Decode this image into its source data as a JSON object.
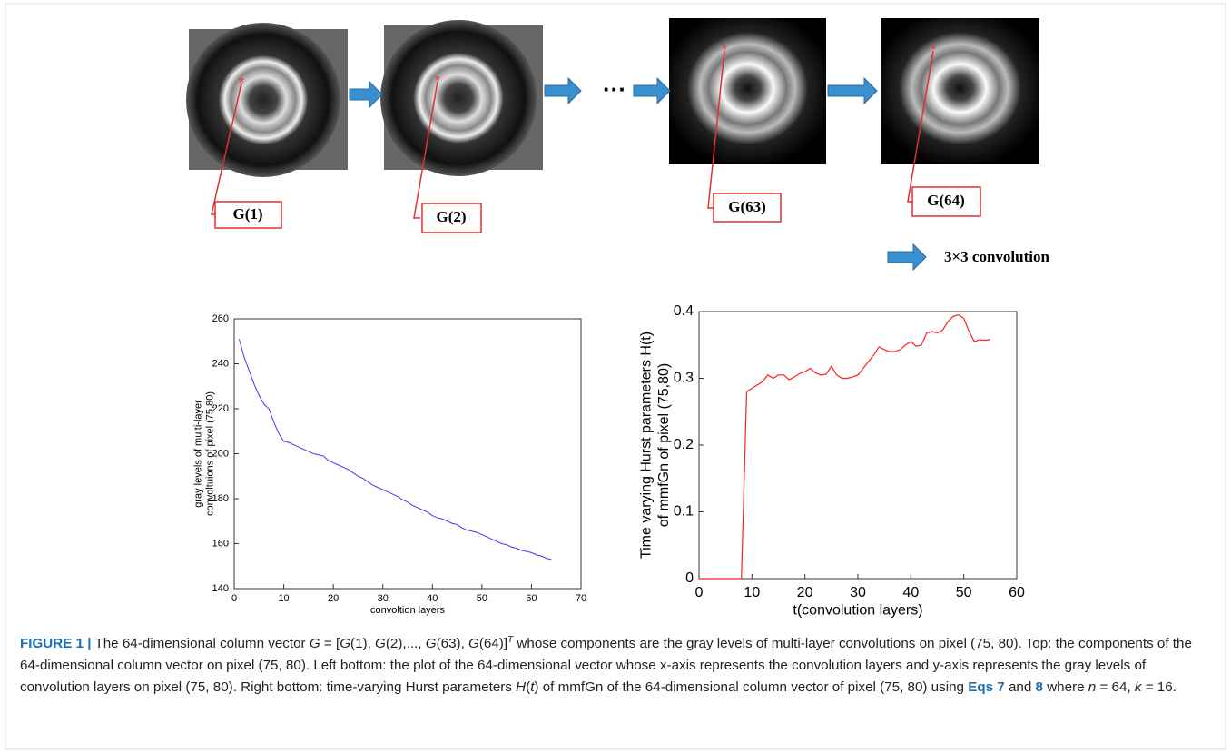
{
  "top": {
    "labels": [
      "G(1)",
      "G(2)",
      "G(63)",
      "G(64)"
    ],
    "ellipsis": "···",
    "legend": "3×3 convolution"
  },
  "chart_data": [
    {
      "type": "line",
      "xlabel": "convoltion layers",
      "ylabel": [
        "gray levels of multi-layer",
        "convoltuions of pixel (75,80)"
      ],
      "color": "#3b3bff",
      "x": [
        1,
        2,
        3,
        4,
        5,
        6,
        7,
        8,
        9,
        10,
        11,
        12,
        13,
        14,
        15,
        16,
        17,
        18,
        19,
        20,
        21,
        22,
        23,
        24,
        25,
        26,
        27,
        28,
        29,
        30,
        31,
        32,
        33,
        34,
        35,
        36,
        37,
        38,
        39,
        40,
        41,
        42,
        43,
        44,
        45,
        46,
        47,
        48,
        49,
        50,
        51,
        52,
        53,
        54,
        55,
        56,
        57,
        58,
        59,
        60,
        61,
        62,
        63,
        64
      ],
      "values": [
        251,
        243,
        237,
        231,
        226,
        222,
        220,
        214,
        209,
        205.5,
        205,
        204,
        203,
        202,
        201,
        200,
        199.5,
        199,
        197,
        196,
        195,
        194,
        193,
        191.5,
        190,
        189,
        187.5,
        186,
        185,
        184,
        183,
        182,
        181,
        179.5,
        178.5,
        177,
        176,
        175,
        174,
        172.5,
        171.5,
        171,
        170,
        169,
        168.5,
        167,
        166,
        165.5,
        165,
        164,
        163,
        162,
        161,
        160,
        159.5,
        158.5,
        158,
        157,
        156.5,
        156,
        155,
        154.5,
        153.5,
        153
      ],
      "xlim": [
        0,
        70
      ],
      "ylim": [
        140,
        260
      ],
      "xticks": [
        0,
        10,
        20,
        30,
        40,
        50,
        60,
        70
      ],
      "yticks": [
        140,
        160,
        180,
        200,
        220,
        240,
        260
      ]
    },
    {
      "type": "line",
      "xlabel": "t(convolution layers)",
      "ylabel": [
        "Time varying Hurst parameters H(t)",
        "of mmfGn of pixel (75,80)"
      ],
      "color": "#ff2020",
      "x": [
        0,
        1,
        2,
        3,
        4,
        5,
        6,
        7,
        8,
        9,
        10,
        11,
        12,
        13,
        14,
        15,
        16,
        17,
        18,
        19,
        20,
        21,
        22,
        23,
        24,
        25,
        26,
        27,
        28,
        29,
        30,
        31,
        32,
        33,
        34,
        35,
        36,
        37,
        38,
        39,
        40,
        41,
        42,
        43,
        44,
        45,
        46,
        47,
        48,
        49,
        50,
        51,
        52,
        53,
        54,
        55
      ],
      "values": [
        0,
        0,
        0,
        0,
        0,
        0,
        0,
        0,
        0,
        0.28,
        0.285,
        0.29,
        0.295,
        0.305,
        0.3,
        0.305,
        0.305,
        0.298,
        0.302,
        0.307,
        0.31,
        0.315,
        0.308,
        0.305,
        0.306,
        0.318,
        0.305,
        0.3,
        0.3,
        0.302,
        0.305,
        0.315,
        0.325,
        0.335,
        0.347,
        0.343,
        0.34,
        0.34,
        0.343,
        0.35,
        0.355,
        0.348,
        0.35,
        0.368,
        0.37,
        0.368,
        0.372,
        0.385,
        0.393,
        0.395,
        0.39,
        0.37,
        0.355,
        0.358,
        0.357,
        0.358
      ],
      "xlim": [
        0,
        60
      ],
      "ylim": [
        0,
        0.4
      ],
      "xticks": [
        0,
        10,
        20,
        30,
        40,
        50,
        60
      ],
      "yticks": [
        0,
        0.1,
        0.2,
        0.3,
        0.4
      ]
    }
  ],
  "caption": {
    "parts": [
      "FIGURE 1 |",
      " The 64-dimensional column vector ",
      "G",
      " = [",
      "G",
      "(1), ",
      "G",
      "(2),..., ",
      "G",
      "(63), ",
      "G",
      "(64)]",
      "T",
      " whose components are the gray levels of multi-layer convolutions on pixel (75, 80). Top: the components of the 64-dimensional column vector on pixel (75, 80). Left bottom: the plot of the 64-dimensional vector whose x-axis represents the convolution layers and y-axis represents the gray levels of convolution layers on pixel (75, 80). Right bottom: time-varying Hurst parameters ",
      "H",
      "(",
      "t",
      ") of mmfGn of the 64-dimensional column vector of pixel (75, 80) using ",
      "Eqs 7",
      " and ",
      "8",
      " where ",
      "n",
      " = 64, ",
      "k",
      " = 16."
    ]
  }
}
